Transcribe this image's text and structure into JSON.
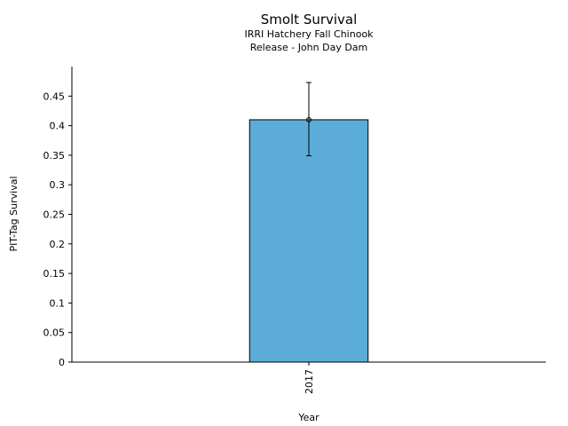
{
  "chart_data": {
    "type": "bar",
    "title": "Smolt Survival",
    "subtitle_lines": [
      "IRRI Hatchery Fall Chinook",
      "Release - John Day Dam"
    ],
    "xlabel": "Year",
    "ylabel": "PIT-Tag Survival",
    "categories": [
      "2017"
    ],
    "values": [
      0.41
    ],
    "error_low": [
      0.349
    ],
    "error_high": [
      0.473
    ],
    "ylim": [
      0,
      0.5
    ],
    "yticks": [
      0,
      0.05,
      0.1,
      0.15,
      0.2,
      0.25,
      0.3,
      0.35,
      0.4,
      0.45
    ],
    "ytick_labels": [
      "0",
      "0.05",
      "0.1",
      "0.15",
      "0.2",
      "0.25",
      "0.3",
      "0.35",
      "0.4",
      "0.45"
    ],
    "grid": false,
    "bar_color": "#5BADD8",
    "bar_edge_color": "#000000"
  }
}
